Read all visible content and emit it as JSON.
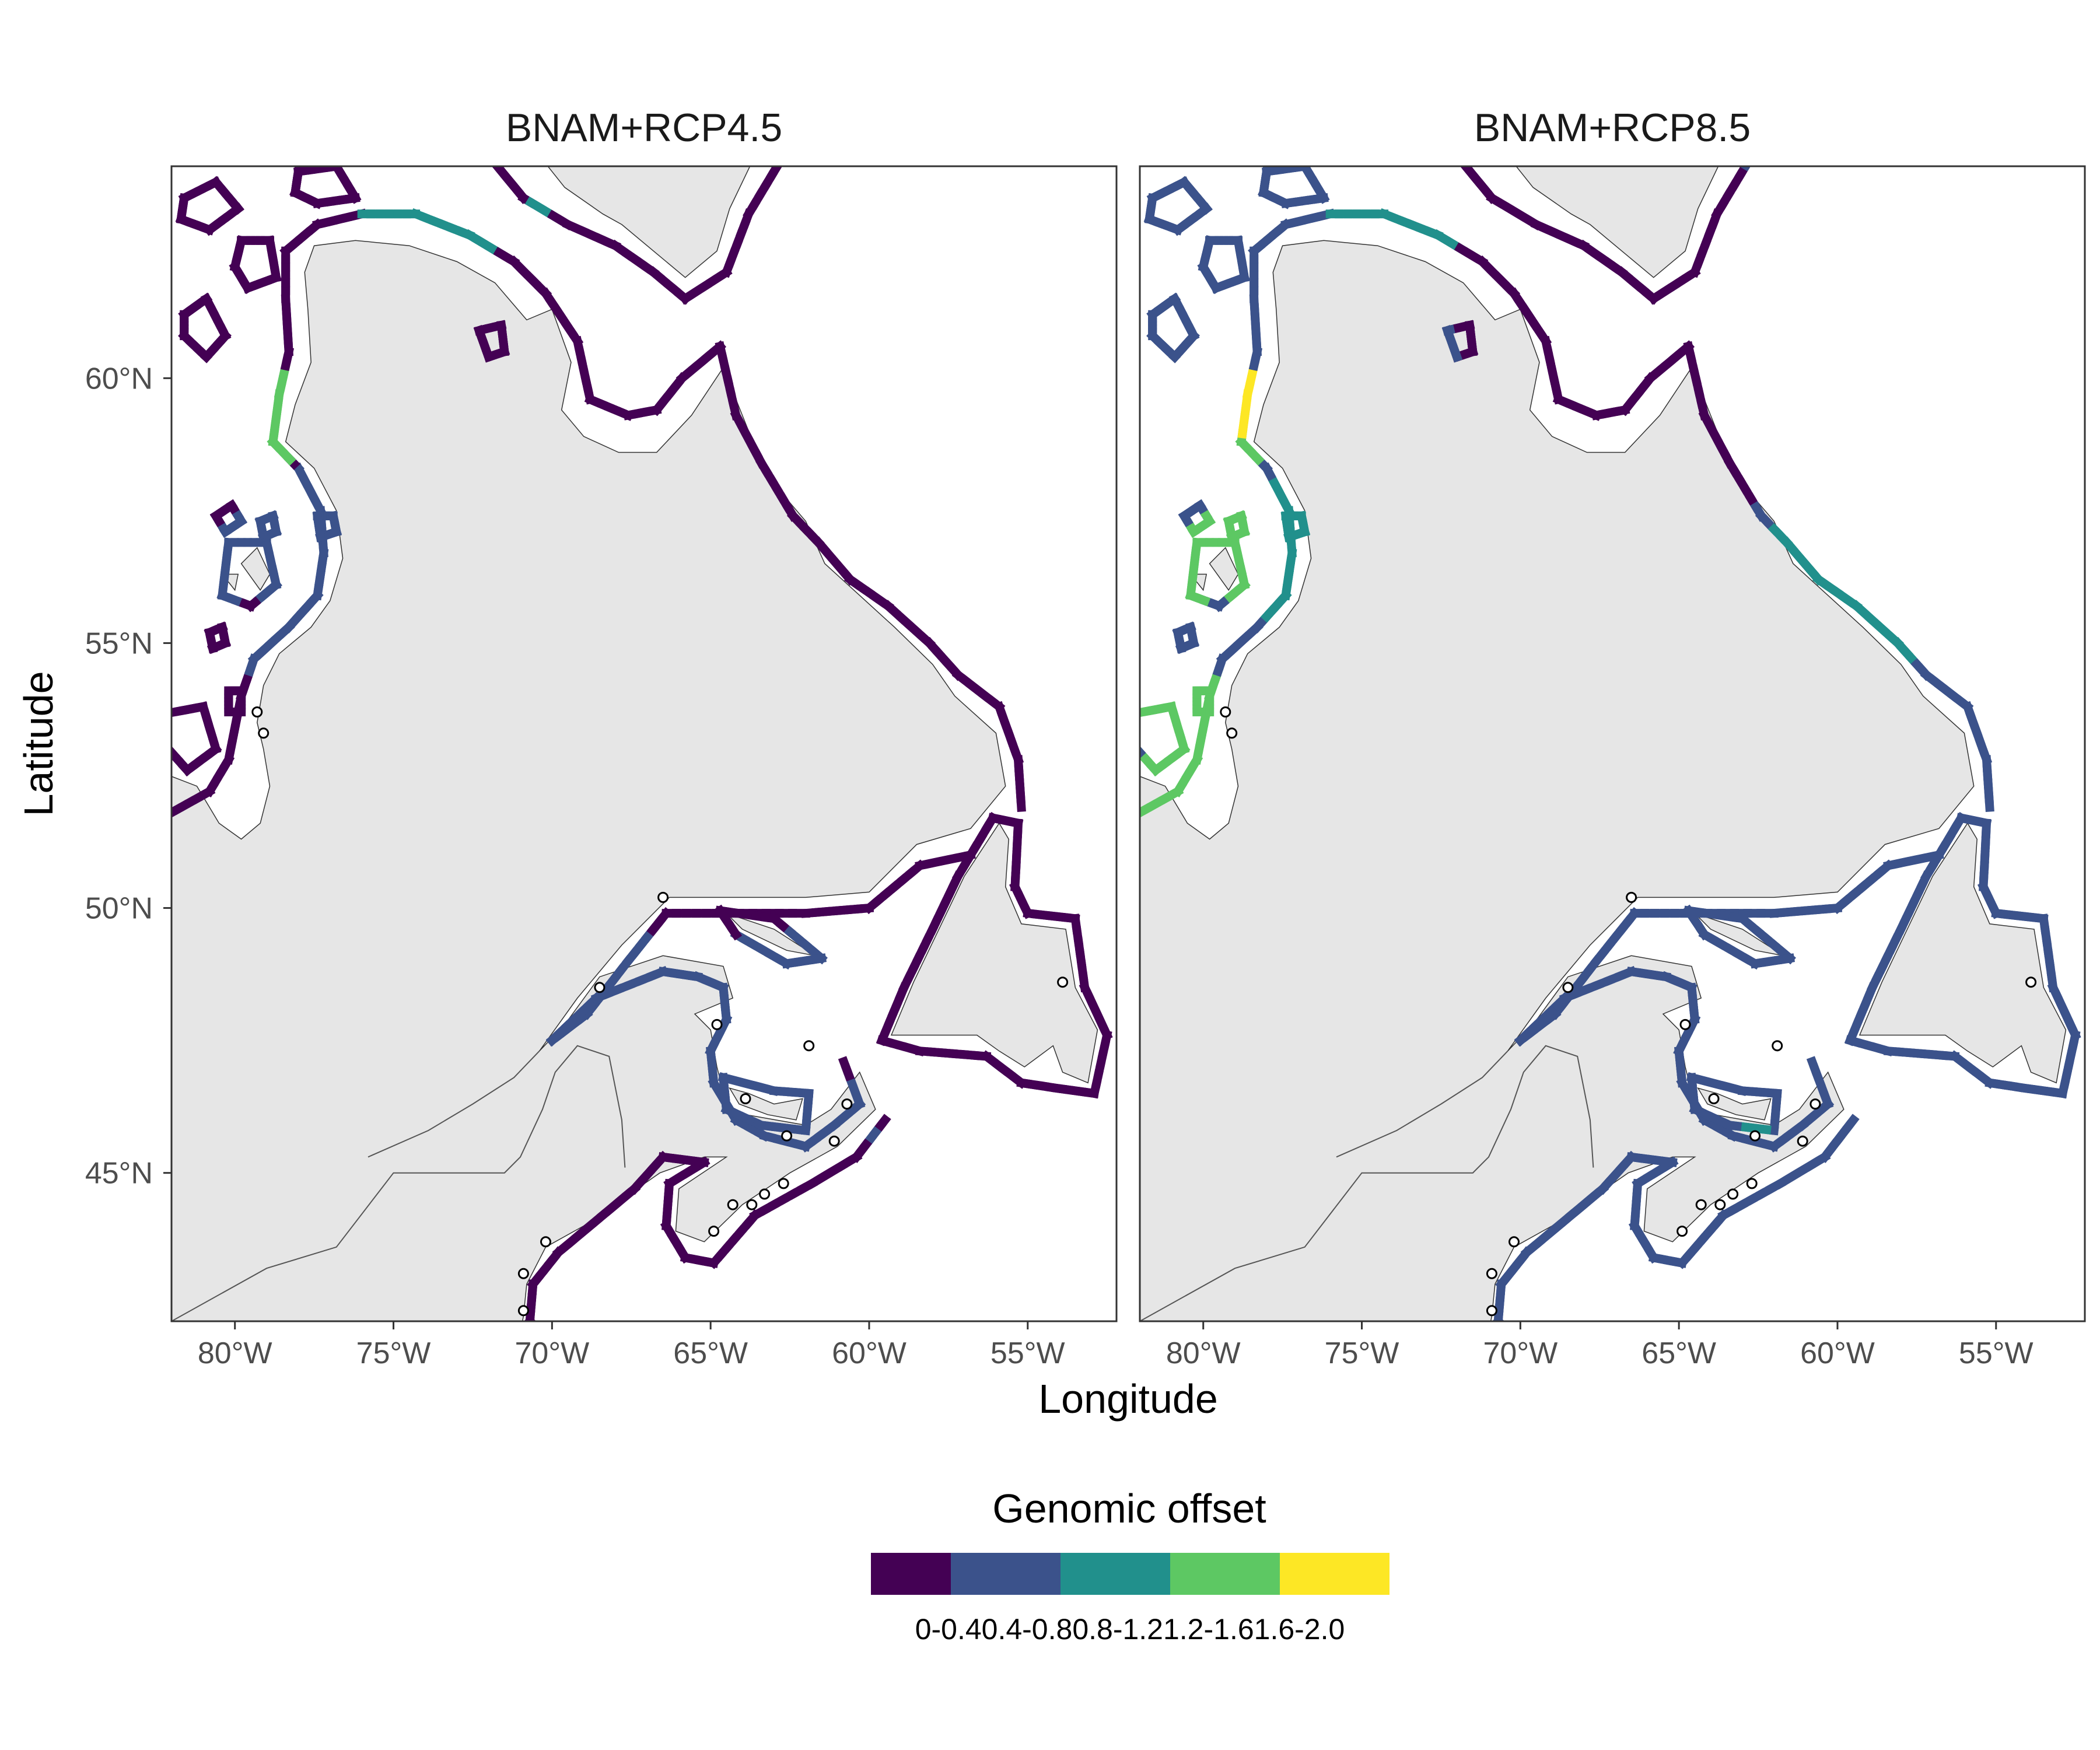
{
  "figure": {
    "panels": [
      {
        "title": "BNAM+RCP4.5",
        "scenario": "rcp45"
      },
      {
        "title": "BNAM+RCP8.5",
        "scenario": "rcp85"
      }
    ],
    "x_axis_title": "Longitude",
    "y_axis_title": "Latitude",
    "x_ticks": [
      "80°W",
      "75°W",
      "70°W",
      "65°W",
      "60°W",
      "55°W"
    ],
    "y_ticks": [
      "60°N",
      "55°N",
      "50°N",
      "45°N"
    ],
    "legend": {
      "title": "Genomic offset",
      "classes": [
        {
          "label": "0-0.4",
          "color": "#440154"
        },
        {
          "label": "0.4-0.8",
          "color": "#3b528b"
        },
        {
          "label": "0.8-1.2",
          "color": "#21908c"
        },
        {
          "label": "1.2-1.6",
          "color": "#5dc863"
        },
        {
          "label": "1.6-2.0",
          "color": "#fde725"
        }
      ]
    }
  },
  "chart_data": {
    "type": "map",
    "extent": {
      "lon": [
        -82,
        -52.2
      ],
      "lat": [
        42.2,
        64
      ]
    },
    "x_ticks_values": [
      -80,
      -75,
      -70,
      -65,
      -60,
      -55
    ],
    "y_ticks_values": [
      60,
      55,
      50,
      45
    ],
    "land_color": "#e6e6e6",
    "sampling_sites": [
      {
        "lon": -79.3,
        "lat": 53.7
      },
      {
        "lon": -79.1,
        "lat": 53.3
      },
      {
        "lon": -66.5,
        "lat": 50.2
      },
      {
        "lon": -68.5,
        "lat": 48.5
      },
      {
        "lon": -64.8,
        "lat": 47.8
      },
      {
        "lon": -61.9,
        "lat": 47.4
      },
      {
        "lon": -63.9,
        "lat": 46.4
      },
      {
        "lon": -62.6,
        "lat": 45.7
      },
      {
        "lon": -60.7,
        "lat": 46.3
      },
      {
        "lon": -61.1,
        "lat": 45.6
      },
      {
        "lon": -62.7,
        "lat": 44.8
      },
      {
        "lon": -63.3,
        "lat": 44.6
      },
      {
        "lon": -63.7,
        "lat": 44.4
      },
      {
        "lon": -64.3,
        "lat": 44.4
      },
      {
        "lon": -64.9,
        "lat": 43.9
      },
      {
        "lon": -70.2,
        "lat": 43.7
      },
      {
        "lon": -70.9,
        "lat": 43.1
      },
      {
        "lon": -70.9,
        "lat": 42.4
      },
      {
        "lon": -53.9,
        "lat": 48.6
      }
    ],
    "offset_bands": {
      "rcp45": {
        "default_class": 0,
        "segments": [
          {
            "name": "hudson-bay-east-upper",
            "lon": [
              -79,
              -78.2
            ],
            "lat": [
              58.4,
              60.2
            ],
            "class": 3
          },
          {
            "name": "hudson-bay-east-mid",
            "lon": [
              -78.3,
              -76.8
            ],
            "lat": [
              55.5,
              58.4
            ],
            "class": 1
          },
          {
            "name": "hudson-bay-east-lower",
            "lon": [
              -79.5,
              -77.5
            ],
            "lat": [
              52.0,
              55.5
            ],
            "class": 1
          },
          {
            "name": "hudson-strait",
            "lon": [
              -76,
              -70
            ],
            "lat": [
              62.4,
              63.3
            ],
            "class": 2
          },
          {
            "name": "belcher-islands",
            "lon": [
              -80.5,
              -78.2
            ],
            "lat": [
              55.8,
              57.4
            ],
            "class": 1
          },
          {
            "name": "gulf-st-lawrence-south",
            "lon": [
              -70.5,
              -61
            ],
            "lat": [
              45.7,
              49.5
            ],
            "class": 1
          },
          {
            "name": "cape-breton-shelf",
            "lon": [
              -64,
              -59.8
            ],
            "lat": [
              45.5,
              46.9
            ],
            "class": 1
          }
        ]
      },
      "rcp85": {
        "default_class": 1,
        "segments": [
          {
            "name": "hudson-bay-east-upper",
            "lon": [
              -79,
              -78.2
            ],
            "lat": [
              59.0,
              60.2
            ],
            "class": 4
          },
          {
            "name": "hudson-bay-east-upper-2",
            "lon": [
              -79,
              -78.2
            ],
            "lat": [
              58.2,
              59.0
            ],
            "class": 3
          },
          {
            "name": "hudson-bay-east-mid",
            "lon": [
              -78.3,
              -76.8
            ],
            "lat": [
              55.5,
              58.2
            ],
            "class": 2
          },
          {
            "name": "hudson-strait",
            "lon": [
              -76,
              -70
            ],
            "lat": [
              62.4,
              63.3
            ],
            "class": 2
          },
          {
            "name": "belcher-islands",
            "lon": [
              -80.5,
              -78.2
            ],
            "lat": [
              55.8,
              57.4
            ],
            "class": 3
          },
          {
            "name": "james-bay",
            "lon": [
              -82,
              -79.5
            ],
            "lat": [
              51.5,
              54.5
            ],
            "class": 3
          },
          {
            "name": "labrador-north",
            "lon": [
              -72,
              -59
            ],
            "lat": [
              57.5,
              64
            ],
            "class": 0
          },
          {
            "name": "labrador-mid",
            "lon": [
              -62,
              -57.5
            ],
            "lat": [
              54.5,
              57.5
            ],
            "class": 2
          },
          {
            "name": "cape-breton-shelf",
            "lon": [
              -63.2,
              -62.2
            ],
            "lat": [
              45.8,
              46.3
            ],
            "class": 2
          }
        ]
      }
    }
  }
}
